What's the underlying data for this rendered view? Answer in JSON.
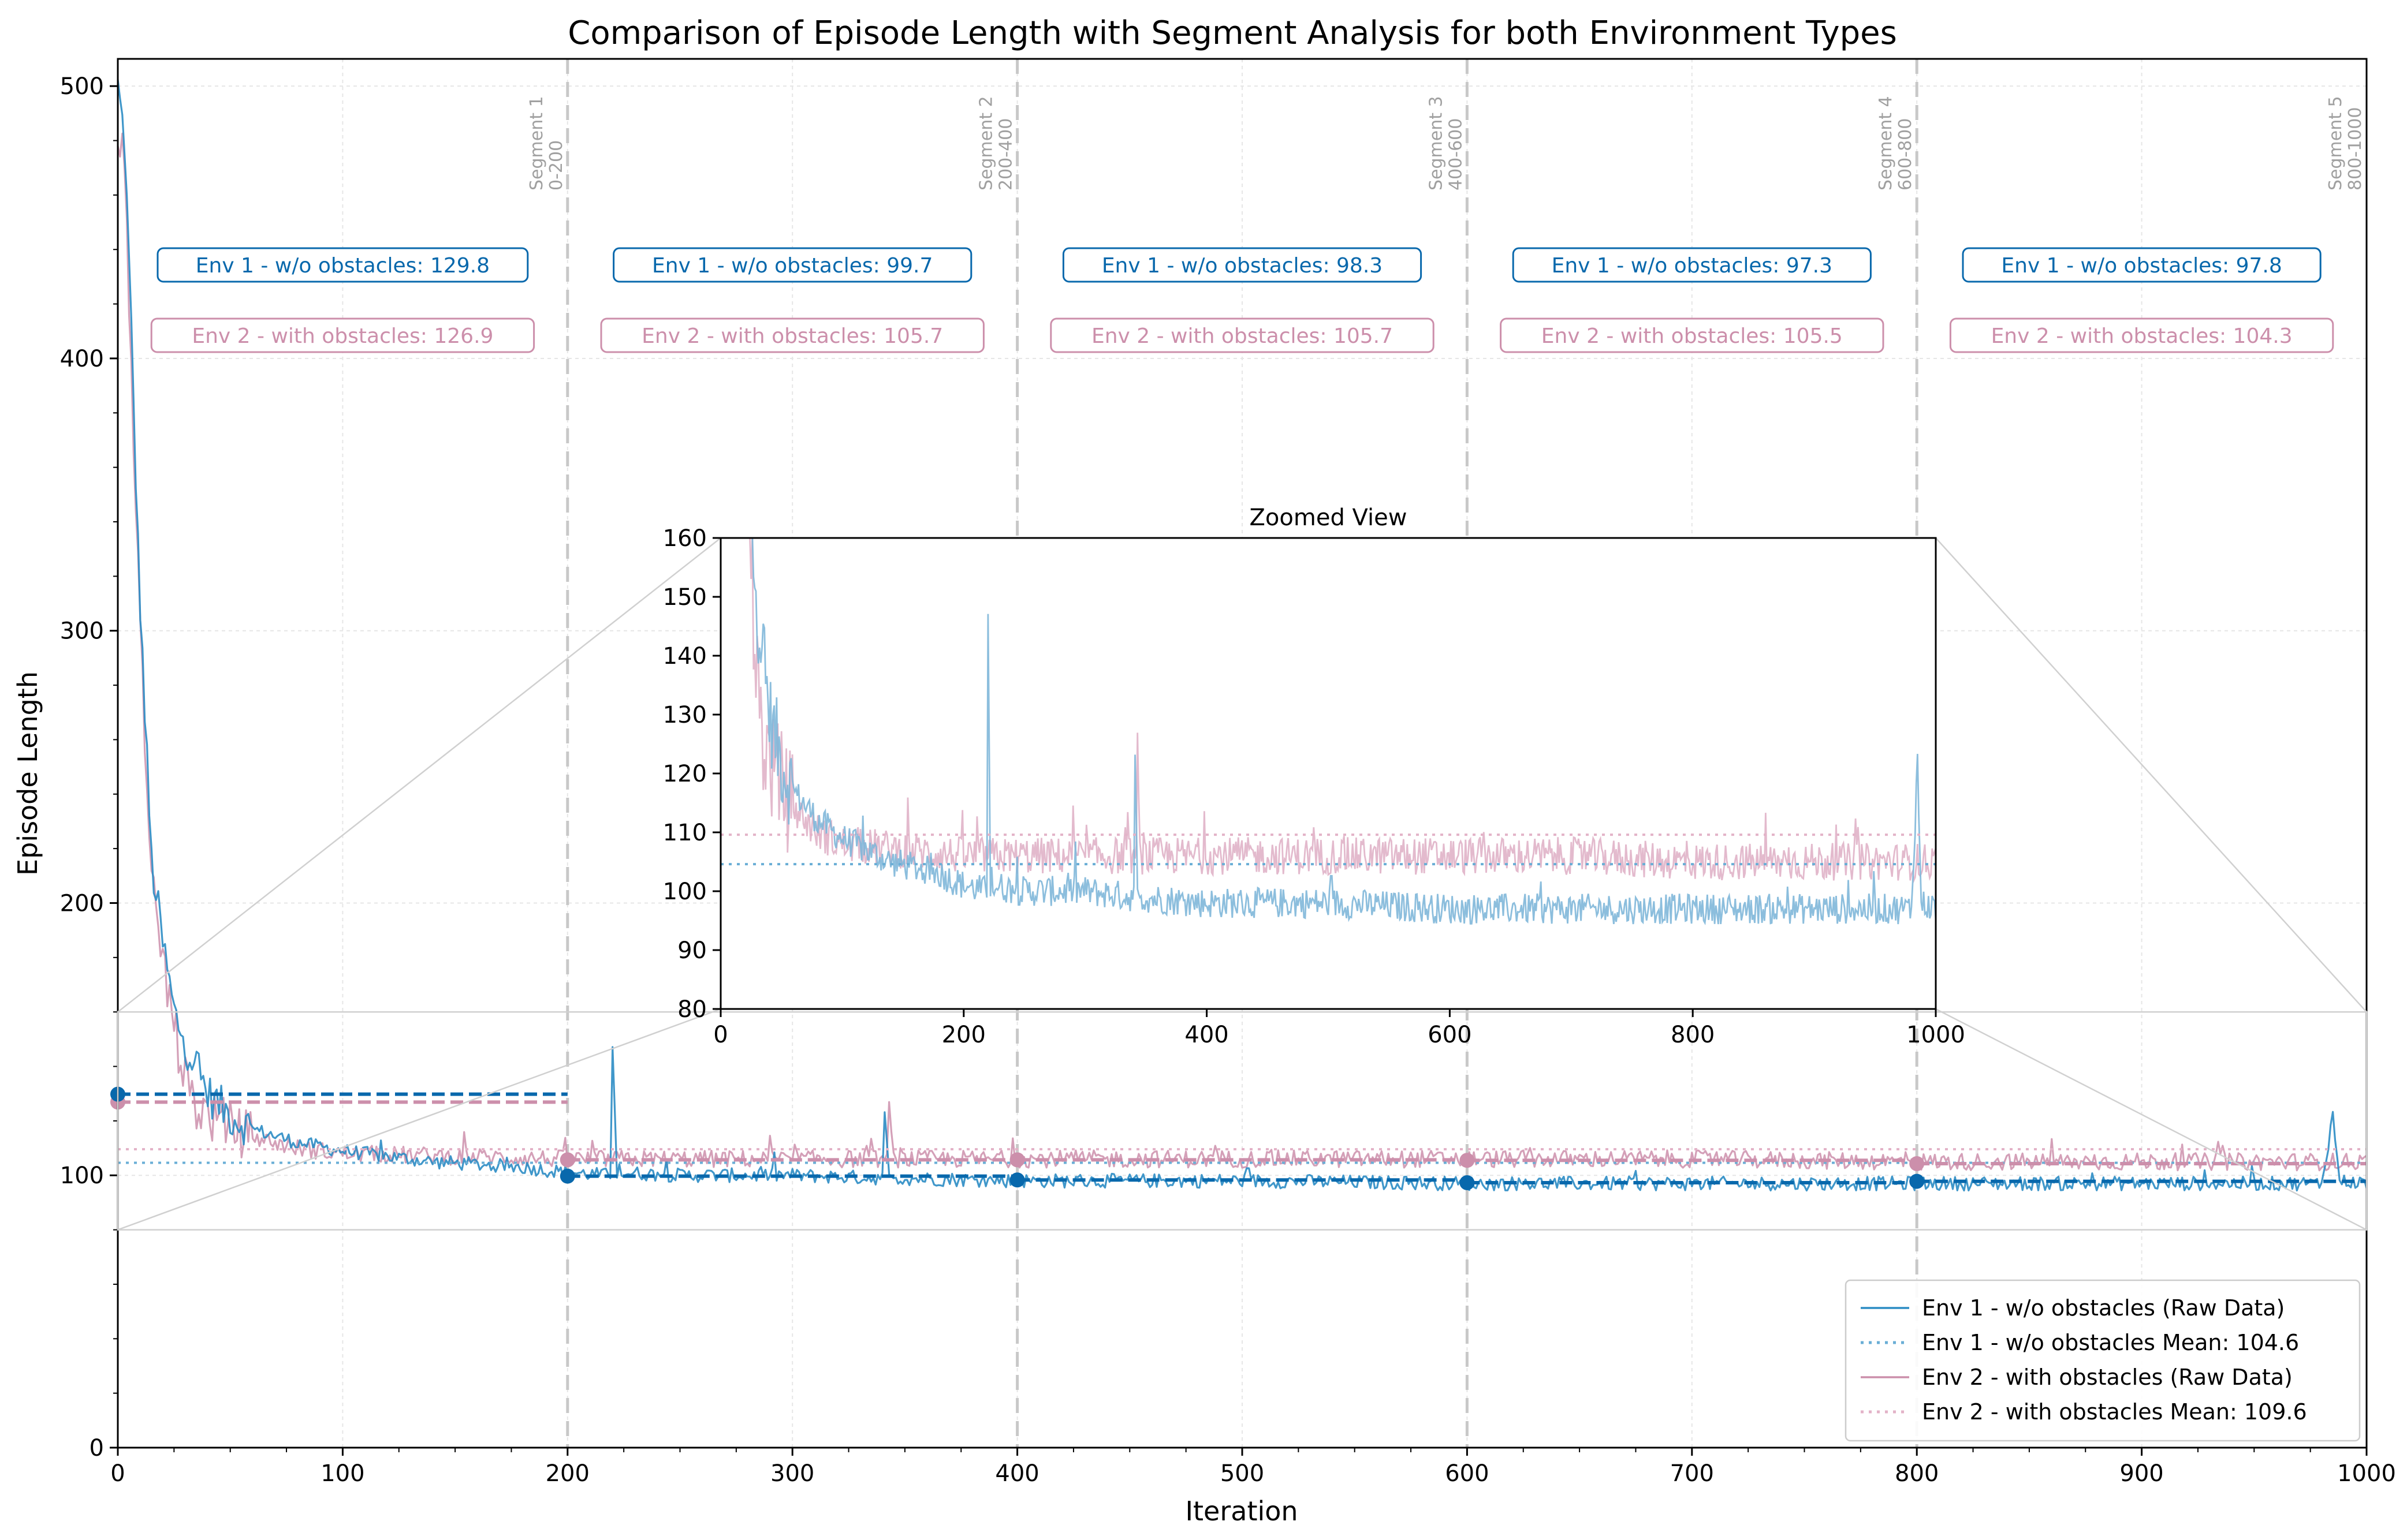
{
  "chart_data": {
    "type": "line",
    "title": "Comparison of Episode Length with Segment Analysis for both Environment Types",
    "xlabel": "Iteration",
    "ylabel": "Episode Length",
    "xlim": [
      0,
      1000
    ],
    "ylim": [
      0,
      510
    ],
    "x_ticks": [
      "0",
      "100",
      "200",
      "300",
      "400",
      "500",
      "600",
      "700",
      "800",
      "900",
      "1000"
    ],
    "y_ticks": [
      "0",
      "100",
      "200",
      "300",
      "400",
      "500"
    ],
    "grid": true,
    "legend_position": "lower right",
    "colors": {
      "env1": "#2b8cc4",
      "env1_dark": "#0868ac",
      "env2": "#cc8fab",
      "env2_light": "#d9a3bc",
      "segment_line": "#c8c8c8"
    },
    "series": [
      {
        "name": "Env 1 - w/o obstacles (Raw Data)",
        "points": [
          [
            0,
            500
          ],
          [
            3,
            480
          ],
          [
            6,
            410
          ],
          [
            9,
            330
          ],
          [
            12,
            270
          ],
          [
            15,
            215
          ],
          [
            20,
            185
          ],
          [
            25,
            160
          ],
          [
            30,
            148
          ],
          [
            35,
            140
          ],
          [
            40,
            130
          ],
          [
            50,
            122
          ],
          [
            60,
            117
          ],
          [
            80,
            112
          ],
          [
            100,
            109
          ],
          [
            120,
            107
          ],
          [
            140,
            105
          ],
          [
            160,
            104
          ],
          [
            180,
            103
          ],
          [
            200,
            101
          ],
          [
            219,
            100
          ],
          [
            220,
            149
          ],
          [
            222,
            101
          ],
          [
            250,
            100
          ],
          [
            300,
            100
          ],
          [
            340,
            99
          ],
          [
            341,
            122
          ],
          [
            343,
            99
          ],
          [
            400,
            98
          ],
          [
            500,
            98
          ],
          [
            600,
            97
          ],
          [
            700,
            97
          ],
          [
            800,
            97
          ],
          [
            900,
            97
          ],
          [
            980,
            97
          ],
          [
            985,
            122
          ],
          [
            988,
            98
          ],
          [
            1000,
            97
          ]
        ],
        "mean": 104.6
      },
      {
        "name": "Env 2 - with obstacles (Raw Data)",
        "points": [
          [
            0,
            480
          ],
          [
            3,
            470
          ],
          [
            6,
            400
          ],
          [
            9,
            320
          ],
          [
            12,
            250
          ],
          [
            15,
            205
          ],
          [
            20,
            180
          ],
          [
            25,
            155
          ],
          [
            30,
            135
          ],
          [
            35,
            125
          ],
          [
            40,
            122
          ],
          [
            50,
            118
          ],
          [
            60,
            114
          ],
          [
            80,
            110
          ],
          [
            100,
            108
          ],
          [
            150,
            107
          ],
          [
            200,
            106
          ],
          [
            300,
            106
          ],
          [
            342,
            106
          ],
          [
            343,
            124
          ],
          [
            345,
            106
          ],
          [
            400,
            106
          ],
          [
            500,
            106
          ],
          [
            600,
            106
          ],
          [
            700,
            106
          ],
          [
            800,
            105
          ],
          [
            900,
            105
          ],
          [
            1000,
            105
          ]
        ],
        "mean": 109.6
      }
    ],
    "legend": [
      "Env 1 - w/o obstacles (Raw Data)",
      "Env 1 - w/o obstacles Mean: 104.6",
      "Env 2 - with obstacles (Raw Data)",
      "Env 2 - with obstacles Mean: 109.6"
    ],
    "segment_lines": [
      200,
      400,
      600,
      800
    ],
    "segments": [
      {
        "name": "Segment 1",
        "range": "0-200",
        "x0": 0,
        "x1": 200,
        "env1_mean": 129.8,
        "env2_mean": 126.9,
        "env1_label": "Env 1 - w/o obstacles: 129.8",
        "env2_label": "Env 2 - with obstacles: 126.9"
      },
      {
        "name": "Segment 2",
        "range": "200-400",
        "x0": 200,
        "x1": 400,
        "env1_mean": 99.7,
        "env2_mean": 105.7,
        "env1_label": "Env 1 - w/o obstacles: 99.7",
        "env2_label": "Env 2 - with obstacles: 105.7"
      },
      {
        "name": "Segment 3",
        "range": "400-600",
        "x0": 400,
        "x1": 600,
        "env1_mean": 98.3,
        "env2_mean": 105.7,
        "env1_label": "Env 1 - w/o obstacles: 98.3",
        "env2_label": "Env 2 - with obstacles: 105.7"
      },
      {
        "name": "Segment 4",
        "range": "600-800",
        "x0": 600,
        "x1": 800,
        "env1_mean": 97.3,
        "env2_mean": 105.5,
        "env1_label": "Env 1 - w/o obstacles: 97.3",
        "env2_label": "Env 2 - with obstacles: 105.5"
      },
      {
        "name": "Segment 5",
        "range": "800-1000",
        "x0": 800,
        "x1": 1000,
        "env1_mean": 97.8,
        "env2_mean": 104.3,
        "env1_label": "Env 1 - w/o obstacles: 97.8",
        "env2_label": "Env 2 - with obstacles: 104.3"
      }
    ],
    "inset": {
      "title": "Zoomed View",
      "xlim": [
        0,
        1000
      ],
      "ylim": [
        80,
        160
      ],
      "x_ticks": [
        "0",
        "200",
        "400",
        "600",
        "800",
        "1000"
      ],
      "y_ticks": [
        "80",
        "90",
        "100",
        "110",
        "120",
        "130",
        "140",
        "150",
        "160"
      ]
    }
  }
}
